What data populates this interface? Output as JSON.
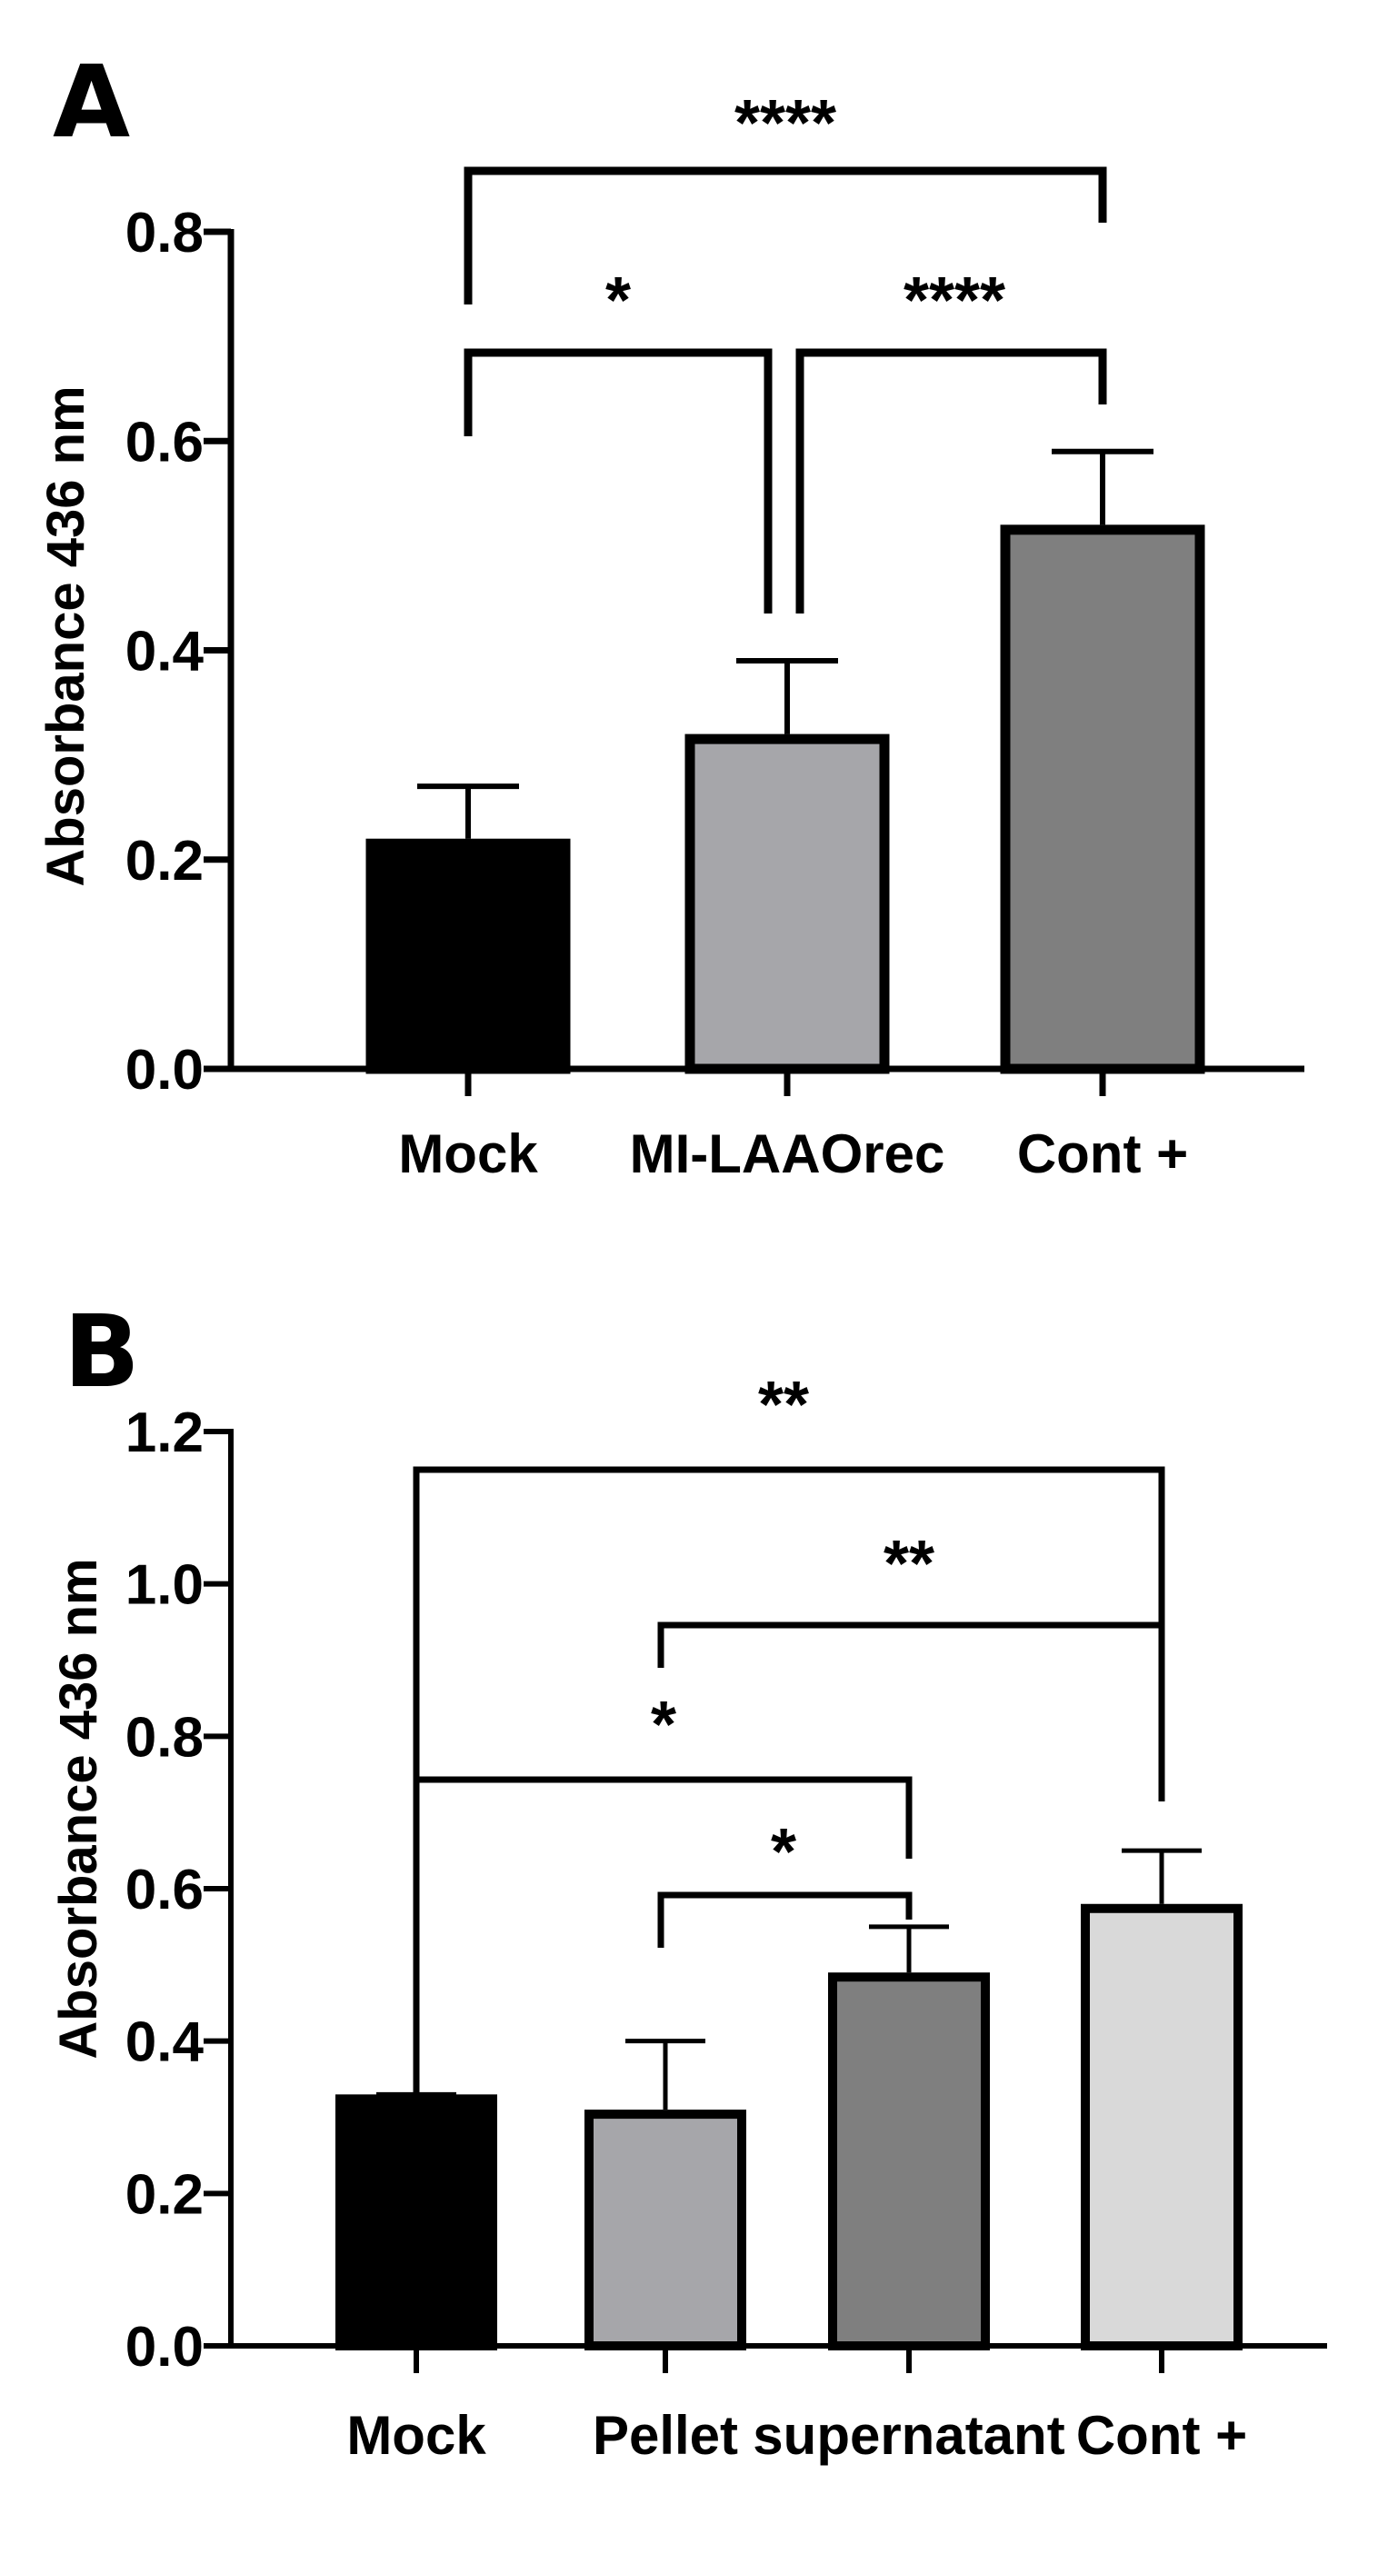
{
  "chart_data": [
    {
      "type": "bar",
      "panel_label": "A",
      "categories": [
        "Mock",
        "MI-LAAOrec",
        "Cont +"
      ],
      "values": [
        0.22,
        0.32,
        0.52
      ],
      "errors": [
        0.05,
        0.07,
        0.07
      ],
      "colors": [
        "#000000",
        "#a6a6aa",
        "#7f7f7f"
      ],
      "ylabel": "Absorbance 436 nm",
      "xlabel": "",
      "ylim": [
        0,
        0.8
      ],
      "yticks": [
        0.0,
        0.2,
        0.4,
        0.6,
        0.8
      ],
      "ytick_labels": [
        "0.0",
        "0.2",
        "0.4",
        "0.6",
        "0.8"
      ],
      "significance": [
        {
          "from": "Mock",
          "to": "Cont +",
          "label": "****"
        },
        {
          "from": "Mock",
          "to": "MI-LAAOrec",
          "label": "*"
        },
        {
          "from": "MI-LAAOrec",
          "to": "Cont +",
          "label": "****"
        }
      ]
    },
    {
      "type": "bar",
      "panel_label": "B",
      "categories": [
        "Mock",
        "Pellet",
        "supernatant",
        "Cont +"
      ],
      "values": [
        0.33,
        0.31,
        0.49,
        0.58
      ],
      "errors": [
        0.0,
        0.09,
        0.06,
        0.07
      ],
      "colors": [
        "#000000",
        "#a6a6aa",
        "#7f7f7f",
        "#d9d9d9"
      ],
      "ylabel": "Absorbance 436 nm",
      "xlabel": "",
      "ylim": [
        0,
        1.2
      ],
      "yticks": [
        0.0,
        0.2,
        0.4,
        0.6,
        0.8,
        1.0,
        1.2
      ],
      "ytick_labels": [
        "0.0",
        "0.2",
        "0.4",
        "0.6",
        "0.8",
        "1.0",
        "1.2"
      ],
      "significance": [
        {
          "from": "Mock",
          "to": "Cont +",
          "label": "**"
        },
        {
          "from": "Pellet",
          "to": "Cont +",
          "label": "**"
        },
        {
          "from": "Mock",
          "to": "supernatant",
          "label": "*"
        },
        {
          "from": "Pellet",
          "to": "supernatant",
          "label": "*"
        }
      ]
    }
  ]
}
